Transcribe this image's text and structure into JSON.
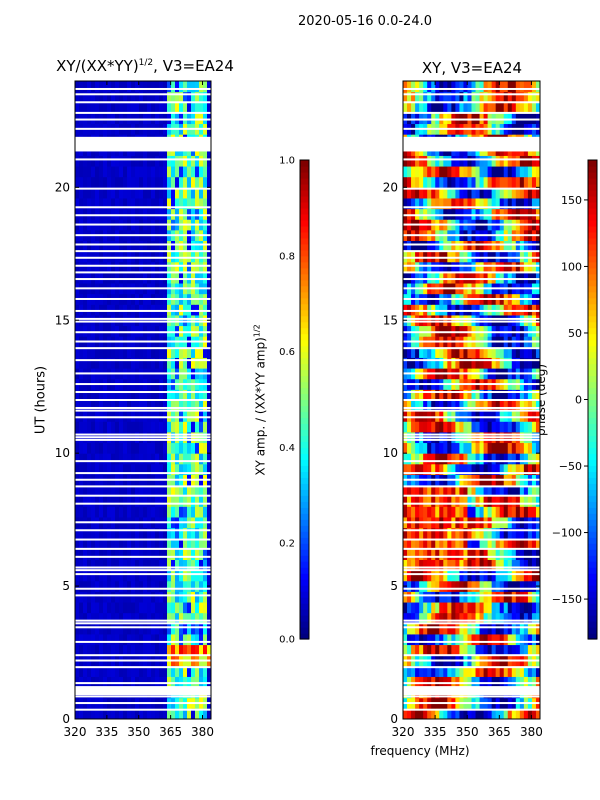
{
  "figure": {
    "suptitle": "2020-05-16 0.0-24.0",
    "xlabel": "frequency (MHz)"
  },
  "chart_data": [
    {
      "type": "heatmap",
      "title_prefix": "XY/(XX*YY)",
      "title_exponent": "1/2",
      "title_suffix": ", V3=EA24",
      "xlabel": "frequency (MHz)",
      "ylabel": "UT (hours)",
      "x_range": [
        320,
        384
      ],
      "y_range": [
        0,
        24
      ],
      "x_ticks": [
        320,
        335,
        350,
        365,
        380
      ],
      "y_ticks": [
        0,
        5,
        10,
        15,
        20
      ],
      "colormap": "jet",
      "colorbar": {
        "label_text": "XY amp. / (XX*YY amp)",
        "label_exponent": "1/2",
        "range": [
          0.0,
          1.0
        ],
        "ticks": [
          "0.0",
          "0.2",
          "0.4",
          "0.6",
          "0.8",
          "1.0"
        ]
      },
      "description_values": {
        "background_amplitude": 0.05,
        "band_highlight_freq_range": [
          364,
          382
        ],
        "band_highlight_amplitude_range": [
          0.3,
          0.6
        ]
      }
    },
    {
      "type": "heatmap",
      "title": "XY, V3=EA24",
      "xlabel": "frequency (MHz)",
      "ylabel": "",
      "x_range": [
        320,
        384
      ],
      "y_range": [
        0,
        24
      ],
      "x_ticks": [
        320,
        335,
        350,
        365,
        380
      ],
      "y_ticks": [
        0,
        5,
        10,
        15,
        20
      ],
      "colormap": "jet",
      "colorbar": {
        "label_text": "phase (deg)",
        "range": [
          -180,
          180
        ],
        "ticks": [
          "−150",
          "−100",
          "−50",
          "0",
          "50",
          "100",
          "150"
        ]
      }
    }
  ],
  "flagged_time_rows_hours": [
    0.35,
    0.6,
    0.85,
    1.2,
    1.35,
    1.95,
    2.2,
    2.4,
    2.9,
    3.45,
    3.6,
    3.7,
    4.65,
    4.9,
    5.45,
    5.6,
    5.7,
    6.1,
    6.4,
    6.75,
    7.1,
    7.4,
    8.1,
    8.4,
    8.75,
    9.0,
    9.25,
    9.7,
    10.5,
    10.6,
    10.7,
    11.35,
    11.6,
    11.7,
    12.0,
    12.3,
    12.6,
    13.0,
    13.5,
    13.95,
    14.2,
    14.55,
    14.95,
    15.05,
    15.35,
    15.8,
    16.2,
    16.55,
    16.8,
    17.05,
    17.35,
    17.6,
    17.85,
    18.2,
    18.6,
    18.95,
    19.25,
    19.95,
    21.05,
    21.4,
    21.85,
    22.2,
    22.55,
    22.8,
    23.2,
    23.5,
    23.7
  ],
  "flagged_time_blocks_hours": [
    [
      0.9,
      1.2
    ],
    [
      21.35,
      21.9
    ]
  ]
}
